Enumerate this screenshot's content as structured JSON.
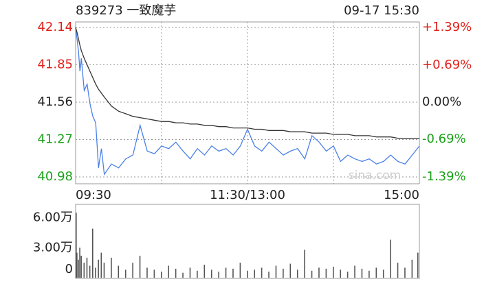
{
  "chart_data": [
    {
      "type": "line",
      "title": "839273 一致魔芋",
      "subtitle": "09-17 15:30",
      "annotation": "sina.com",
      "x": [
        0,
        1,
        2,
        3,
        4,
        6,
        8,
        10,
        12,
        14,
        16,
        18,
        20,
        25,
        30,
        35,
        40,
        45,
        50,
        55,
        60,
        65,
        70,
        75,
        80,
        85,
        90,
        95,
        100,
        105,
        110,
        115,
        120,
        125,
        130,
        135,
        140,
        145,
        150,
        155,
        160,
        165,
        170,
        175,
        180,
        185,
        190,
        195,
        200,
        205,
        210,
        215,
        220,
        225,
        230,
        235,
        240
      ],
      "series": [
        {
          "color": "#4a80e8",
          "values": [
            42.14,
            42.05,
            41.95,
            41.8,
            41.9,
            41.65,
            41.7,
            41.55,
            41.45,
            41.4,
            41.05,
            41.2,
            41.0,
            41.08,
            41.05,
            41.12,
            41.15,
            41.38,
            41.18,
            41.16,
            41.22,
            41.2,
            41.25,
            41.18,
            41.12,
            41.2,
            41.15,
            41.22,
            41.18,
            41.2,
            41.15,
            41.22,
            41.35,
            41.22,
            41.18,
            41.25,
            41.2,
            41.15,
            41.18,
            41.2,
            41.12,
            41.3,
            41.25,
            41.18,
            41.22,
            41.1,
            41.15,
            41.12,
            41.1,
            41.12,
            41.08,
            41.1,
            41.15,
            41.1,
            41.08,
            41.15,
            41.22
          ]
        },
        {
          "color": "#333333",
          "values": [
            42.14,
            42.1,
            42.05,
            42.0,
            41.96,
            41.9,
            41.85,
            41.8,
            41.75,
            41.7,
            41.66,
            41.63,
            41.6,
            41.53,
            41.49,
            41.47,
            41.45,
            41.44,
            41.43,
            41.42,
            41.41,
            41.41,
            41.4,
            41.4,
            41.39,
            41.39,
            41.38,
            41.38,
            41.37,
            41.37,
            41.36,
            41.36,
            41.36,
            41.35,
            41.35,
            41.34,
            41.34,
            41.34,
            41.33,
            41.33,
            41.33,
            41.32,
            41.32,
            41.32,
            41.31,
            41.31,
            41.31,
            41.3,
            41.3,
            41.3,
            41.29,
            41.29,
            41.29,
            41.28,
            41.28,
            41.28,
            41.28
          ]
        }
      ],
      "xlim": [
        0,
        240
      ],
      "xticks": [
        {
          "value": 0,
          "label": "09:30"
        },
        {
          "value": 120,
          "label": "11:30/13:00"
        },
        {
          "value": 240,
          "label": "15:00"
        }
      ],
      "x_gridlines": [
        60,
        120,
        180
      ],
      "ylim": [
        40.98,
        42.14
      ],
      "yticks": [
        42.14,
        41.85,
        41.56,
        41.27,
        40.98
      ],
      "ytick_colors": [
        "#e0201a",
        "#e0201a",
        "#222222",
        "#1aa01a",
        "#1aa01a"
      ],
      "y2lim": [
        -1.39,
        1.39
      ],
      "y2ticks": [
        {
          "value": 1.39,
          "label": "+1.39%"
        },
        {
          "value": 0.69,
          "label": "+0.69%"
        },
        {
          "value": 0,
          "label": "0.00%"
        },
        {
          "value": -0.69,
          "label": "-0.69%"
        },
        {
          "value": -1.39,
          "label": "-1.39%"
        }
      ],
      "grid": true
    },
    {
      "type": "bar",
      "color": "#555555",
      "x": [
        0,
        1,
        2,
        3,
        4,
        6,
        8,
        10,
        12,
        14,
        16,
        18,
        20,
        25,
        30,
        35,
        40,
        45,
        50,
        55,
        60,
        65,
        70,
        75,
        80,
        85,
        90,
        95,
        100,
        105,
        110,
        115,
        120,
        125,
        130,
        135,
        140,
        145,
        150,
        155,
        160,
        165,
        170,
        175,
        180,
        185,
        190,
        195,
        200,
        205,
        210,
        215,
        220,
        225,
        230,
        235,
        240
      ],
      "values": [
        6.5,
        2.5,
        1.8,
        3.0,
        2.2,
        1.5,
        2.0,
        1.2,
        4.9,
        1.0,
        1.8,
        2.5,
        1.5,
        2.0,
        1.2,
        0.8,
        1.5,
        2.2,
        1.0,
        0.8,
        0.6,
        1.2,
        0.9,
        0.5,
        1.0,
        0.7,
        1.3,
        0.8,
        0.6,
        1.0,
        0.9,
        1.5,
        0.7,
        0.8,
        1.0,
        0.6,
        1.2,
        0.9,
        1.4,
        0.8,
        2.8,
        0.7,
        1.0,
        0.9,
        1.1,
        0.8,
        0.6,
        1.2,
        0.9,
        0.7,
        1.0,
        0.8,
        3.8,
        1.5,
        1.0,
        1.8,
        2.5
      ],
      "xlim": [
        0,
        240
      ],
      "ylim": [
        0,
        7.2
      ],
      "yticks": [
        {
          "value": 6,
          "label": "6.00万"
        },
        {
          "value": 3,
          "label": "3.00万"
        },
        0
      ]
    }
  ]
}
